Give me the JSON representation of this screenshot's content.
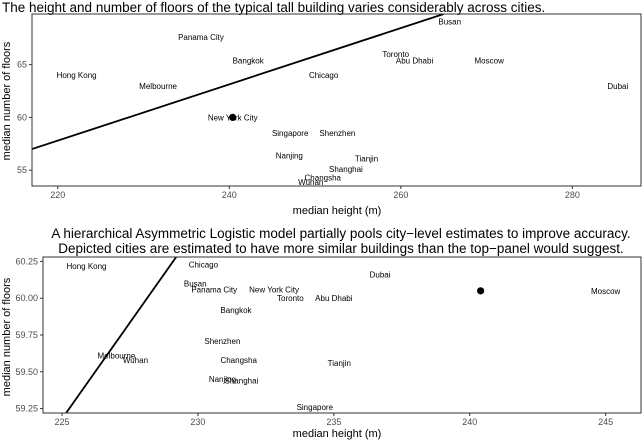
{
  "chart_data": [
    {
      "type": "scatter",
      "title": "The height and number of floors of the typical tall building varies considerably across cities.",
      "xlabel": "median height (m)",
      "ylabel": "median number of floors",
      "xlim": [
        217,
        288
      ],
      "ylim": [
        53.5,
        69.8
      ],
      "xticks": [
        220,
        240,
        260,
        280
      ],
      "yticks": [
        55,
        60,
        65
      ],
      "points": [
        {
          "city": "Busan",
          "x": 265.7,
          "y": 69.1
        },
        {
          "city": "Panama City",
          "x": 236.7,
          "y": 67.6
        },
        {
          "city": "Toronto",
          "x": 259.4,
          "y": 66.0
        },
        {
          "city": "Bangkok",
          "x": 242.2,
          "y": 65.4
        },
        {
          "city": "Abu Dhabi",
          "x": 261.6,
          "y": 65.4
        },
        {
          "city": "Moscow",
          "x": 270.3,
          "y": 65.4
        },
        {
          "city": "Hong Kong",
          "x": 222.2,
          "y": 64.0
        },
        {
          "city": "Chicago",
          "x": 251.0,
          "y": 64.0
        },
        {
          "city": "Melbourne",
          "x": 231.7,
          "y": 63.0
        },
        {
          "city": "Dubai",
          "x": 285.3,
          "y": 63.0
        },
        {
          "city": "New York City",
          "x": 240.4,
          "y": 60.0
        },
        {
          "city": "Singapore",
          "x": 247.1,
          "y": 58.5
        },
        {
          "city": "Shenzhen",
          "x": 252.6,
          "y": 58.5
        },
        {
          "city": "Nanjing",
          "x": 247.0,
          "y": 56.4
        },
        {
          "city": "Tianjin",
          "x": 256.0,
          "y": 56.1
        },
        {
          "city": "Shanghai",
          "x": 253.6,
          "y": 55.1
        },
        {
          "city": "Changsha",
          "x": 250.9,
          "y": 54.3
        },
        {
          "city": "Wuhan",
          "x": 249.5,
          "y": 53.9
        }
      ],
      "marker": {
        "x": 240.4,
        "y": 60.0
      },
      "fit_line": {
        "x": [
          217,
          265
        ],
        "y": [
          57.0,
          69.8
        ]
      }
    },
    {
      "type": "scatter",
      "title": "A hierarchical Asymmetric Logistic model partially pools city−level estimates to improve accuracy.\nDepicted cities are estimated to have more similar buildings than the top−panel would suggest.",
      "title_lines": [
        "A hierarchical Asymmetric Logistic model partially pools city−level estimates to improve accuracy.",
        "Depicted cities are estimated to have more similar buildings than the top−panel would suggest."
      ],
      "xlabel": "median height (m)",
      "ylabel": "median number of floors",
      "xlim": [
        224.3,
        246.3
      ],
      "ylim": [
        59.22,
        60.28
      ],
      "xticks": [
        225,
        230,
        235,
        240,
        245
      ],
      "yticks": [
        59.25,
        59.5,
        59.75,
        60.0,
        60.25
      ],
      "ytick_labels": [
        "59.25",
        "59.50",
        "59.75",
        "60.00",
        "60.25"
      ],
      "points": [
        {
          "city": "Hong Kong",
          "x": 225.9,
          "y": 60.22
        },
        {
          "city": "Chicago",
          "x": 230.2,
          "y": 60.23
        },
        {
          "city": "Dubai",
          "x": 236.7,
          "y": 60.16
        },
        {
          "city": "Busan",
          "x": 229.9,
          "y": 60.1
        },
        {
          "city": "Panama City",
          "x": 230.6,
          "y": 60.06
        },
        {
          "city": "New York City",
          "x": 232.8,
          "y": 60.06
        },
        {
          "city": "Toronto",
          "x": 233.4,
          "y": 60.0
        },
        {
          "city": "Abu Dhabi",
          "x": 235.0,
          "y": 60.0
        },
        {
          "city": "Moscow",
          "x": 245.0,
          "y": 60.05
        },
        {
          "city": "Bangkok",
          "x": 231.4,
          "y": 59.92
        },
        {
          "city": "Shenzhen",
          "x": 230.9,
          "y": 59.71
        },
        {
          "city": "Melbourne",
          "x": 227.0,
          "y": 59.61
        },
        {
          "city": "Wuhan",
          "x": 227.7,
          "y": 59.58
        },
        {
          "city": "Changsha",
          "x": 231.5,
          "y": 59.58
        },
        {
          "city": "Tianjin",
          "x": 235.2,
          "y": 59.56
        },
        {
          "city": "Nanjing",
          "x": 230.9,
          "y": 59.45
        },
        {
          "city": "Shanghai",
          "x": 231.6,
          "y": 59.44
        },
        {
          "city": "Singapore",
          "x": 234.3,
          "y": 59.26
        }
      ],
      "marker": {
        "x": 240.4,
        "y": 60.05
      },
      "fit_line": {
        "x": [
          225.15,
          229.2
        ],
        "y": [
          59.22,
          60.28
        ]
      }
    }
  ]
}
